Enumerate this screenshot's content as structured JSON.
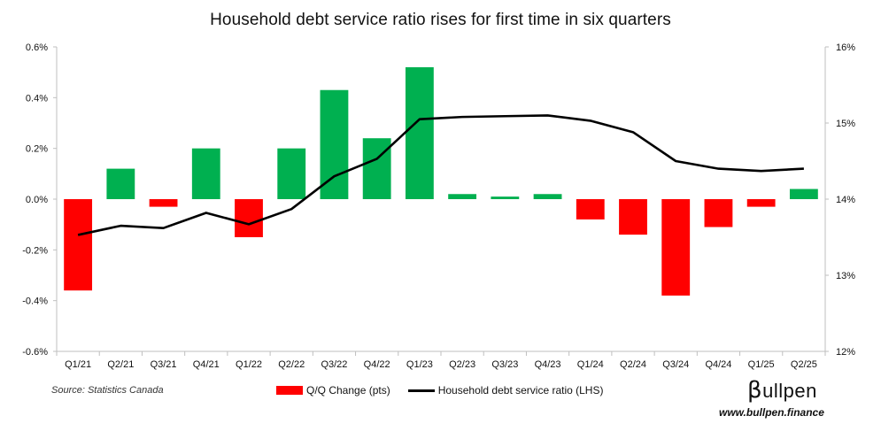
{
  "chart_data": {
    "type": "bar",
    "title": "Household debt service ratio rises for first time in six quarters",
    "categories": [
      "Q1/21",
      "Q2/21",
      "Q3/21",
      "Q4/21",
      "Q1/22",
      "Q2/22",
      "Q3/22",
      "Q4/22",
      "Q1/23",
      "Q2/23",
      "Q3/23",
      "Q4/23",
      "Q1/24",
      "Q2/24",
      "Q3/24",
      "Q4/24",
      "Q1/25",
      "Q2/25"
    ],
    "series": [
      {
        "name": "Q/Q Change (pts)",
        "type": "bar",
        "axis": "left",
        "values": [
          -0.36,
          0.12,
          -0.03,
          0.2,
          -0.15,
          0.2,
          0.43,
          0.24,
          0.52,
          0.02,
          0.01,
          0.02,
          -0.08,
          -0.14,
          -0.38,
          -0.11,
          -0.03,
          0.04
        ]
      },
      {
        "name": "Household debt service ratio (LHS)",
        "type": "line",
        "axis": "right",
        "values": [
          13.53,
          13.65,
          13.62,
          13.82,
          13.67,
          13.87,
          14.3,
          14.53,
          15.05,
          15.08,
          15.09,
          15.1,
          15.03,
          14.88,
          14.5,
          14.4,
          14.37,
          14.4
        ]
      }
    ],
    "left_axis": {
      "ylim": [
        -0.6,
        0.6
      ],
      "ticks": [
        "0.6%",
        "0.4%",
        "0.2%",
        "0.0%",
        "-0.2%",
        "-0.4%",
        "-0.6%"
      ]
    },
    "right_axis": {
      "ylim": [
        12,
        16
      ],
      "ticks": [
        "16%",
        "15%",
        "14%",
        "13%",
        "12%"
      ]
    },
    "colors": {
      "positive": "#00b050",
      "negative": "#ff0000",
      "line": "#000000"
    },
    "grid": false,
    "legend_position": "bottom"
  },
  "footer": {
    "source": "Source: Statistics Canada",
    "brand": "ullpen",
    "brand_glyph": "β",
    "url": "www.bullpen.finance"
  }
}
